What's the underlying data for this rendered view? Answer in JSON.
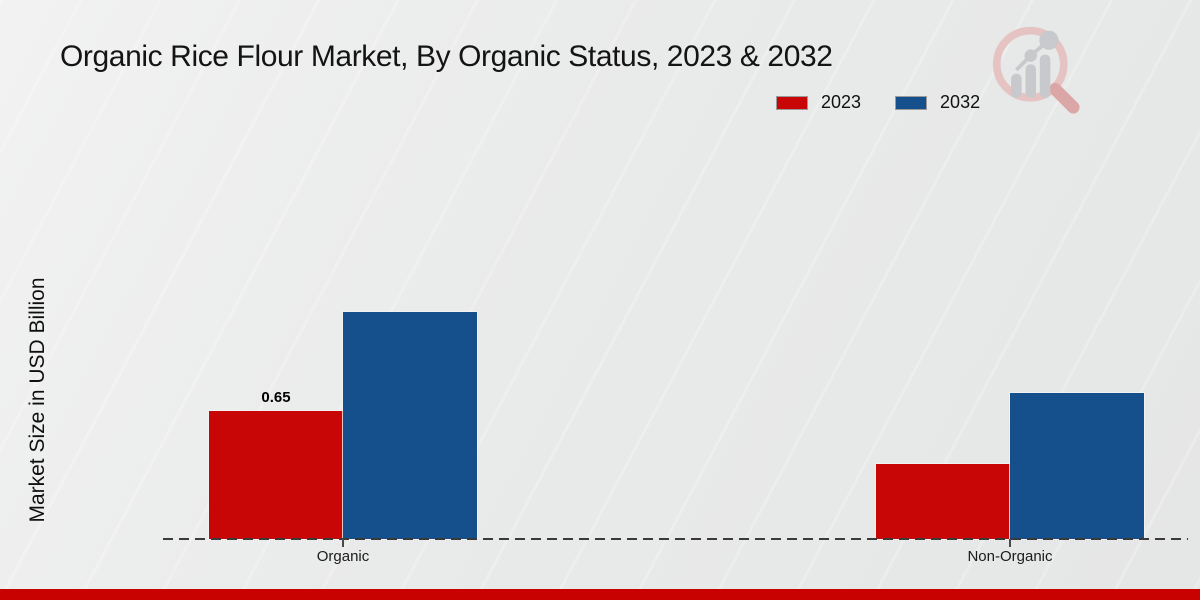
{
  "title": "Organic Rice Flour Market, By Organic Status, 2023 & 2032",
  "y_axis_label": "Market Size in USD Billion",
  "legend": {
    "items": [
      {
        "label": "2023",
        "color": "#c80606"
      },
      {
        "label": "2032",
        "color": "#15508d"
      }
    ]
  },
  "chart_data": {
    "type": "bar",
    "title": "Organic Rice Flour Market, By Organic Status, 2023 & 2032",
    "xlabel": "",
    "ylabel": "Market Size in USD Billion",
    "categories": [
      "Organic",
      "Non-Organic"
    ],
    "series": [
      {
        "name": "2023",
        "color": "#c80606",
        "values": [
          0.65,
          0.38
        ]
      },
      {
        "name": "2032",
        "color": "#15508d",
        "values": [
          1.15,
          0.74
        ]
      }
    ],
    "data_labels": [
      {
        "series": 0,
        "category": 0,
        "text": "0.65"
      }
    ],
    "ylim": [
      0,
      1.3
    ],
    "grid": false,
    "legend_position": "top-right",
    "x_axis_style": "dashed"
  },
  "icons": {
    "logo": "market-research-future-logo"
  },
  "footer": {
    "accent_color": "#c80101"
  }
}
